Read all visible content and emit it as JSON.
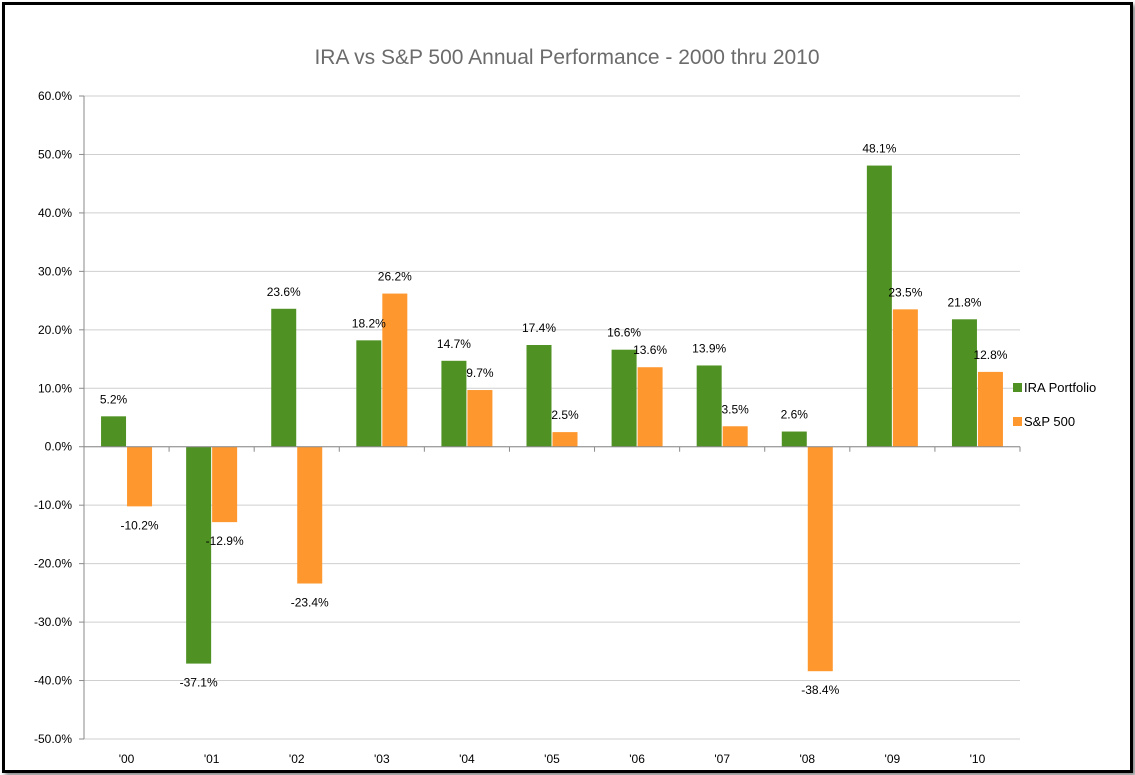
{
  "chart_data": {
    "type": "bar",
    "title": "IRA vs S&P 500 Annual Performance - 2000 thru 2010",
    "xlabel": "",
    "ylabel": "",
    "categories": [
      "'00",
      "'01",
      "'02",
      "'03",
      "'04",
      "'05",
      "'06",
      "'07",
      "'08",
      "'09",
      "'10"
    ],
    "ylim": [
      -50,
      60
    ],
    "yticks": [
      60,
      50,
      40,
      30,
      20,
      10,
      0,
      -10,
      -20,
      -30,
      -40,
      -50
    ],
    "ytick_labels": [
      "60.0%",
      "50.0%",
      "40.0%",
      "30.0%",
      "20.0%",
      "10.0%",
      "0.0%",
      "-10.0%",
      "-20.0%",
      "-30.0%",
      "-40.0%",
      "-50.0%"
    ],
    "grid": true,
    "legend_position": "right",
    "series": [
      {
        "name": "IRA Portfolio",
        "color": "#4f9122",
        "values": [
          5.2,
          -37.1,
          23.6,
          18.2,
          14.7,
          17.4,
          16.6,
          13.9,
          2.6,
          48.1,
          21.8
        ],
        "labels": [
          "5.2%",
          "-37.1%",
          "23.6%",
          "18.2%",
          "14.7%",
          "17.4%",
          "16.6%",
          "13.9%",
          "2.6%",
          "48.1%",
          "21.8%"
        ]
      },
      {
        "name": "S&P 500",
        "color": "#fe972e",
        "values": [
          -10.2,
          -12.9,
          -23.4,
          26.2,
          9.7,
          2.5,
          13.6,
          3.5,
          -38.4,
          23.5,
          12.8
        ],
        "labels": [
          "-10.2%",
          "-12.9%",
          "-23.4%",
          "26.2%",
          "9.7%",
          "2.5%",
          "13.6%",
          "3.5%",
          "-38.4%",
          "23.5%",
          "12.8%"
        ]
      }
    ]
  }
}
